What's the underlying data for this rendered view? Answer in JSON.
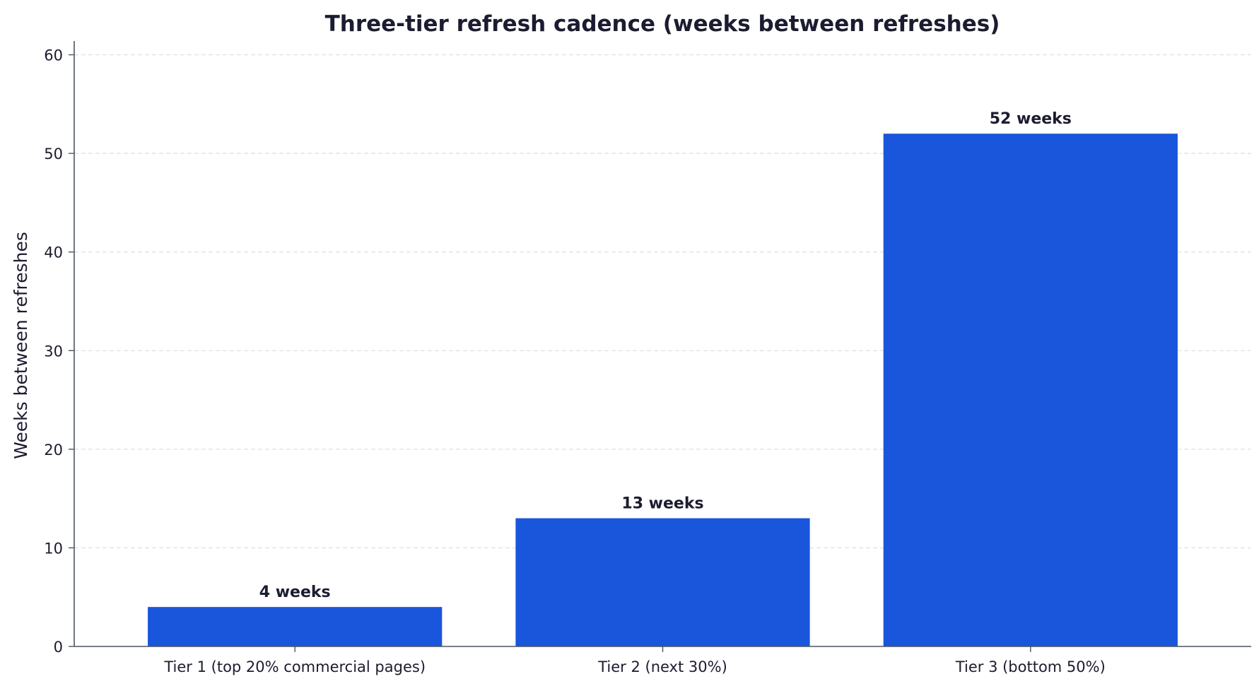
{
  "chart_data": {
    "type": "bar",
    "title": "Three-tier refresh cadence (weeks between refreshes)",
    "xlabel": "",
    "ylabel": "Weeks between refreshes",
    "categories": [
      "Tier 1 (top 20% commercial pages)",
      "Tier 2 (next 30%)",
      "Tier 3 (bottom 50%)"
    ],
    "values": [
      4,
      13,
      52
    ],
    "data_labels": [
      "4 weeks",
      "13 weeks",
      "52 weeks"
    ],
    "yticks": [
      0,
      10,
      20,
      30,
      40,
      50,
      60
    ],
    "ylim": [
      0,
      61.4
    ],
    "grid": true,
    "bar_color": "#1a56db"
  }
}
